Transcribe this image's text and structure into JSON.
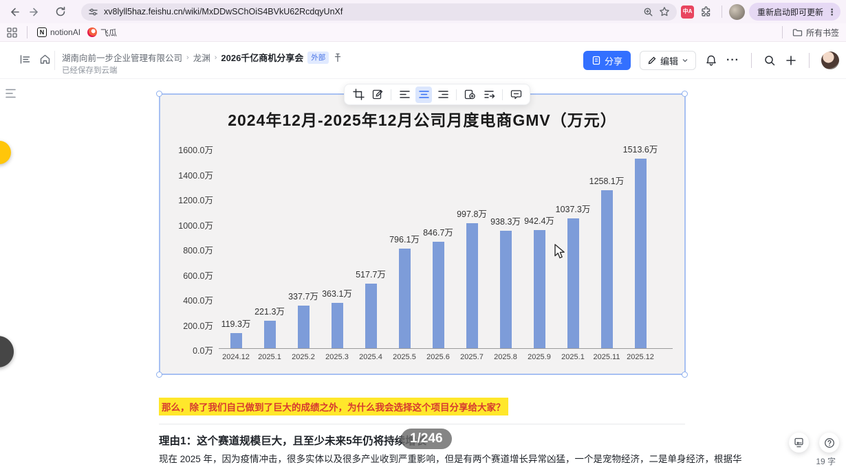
{
  "browser": {
    "url": "xv8lyll5haz.feishu.cn/wiki/MxDDwSChOiS4BVkU62RcdqyUnXf",
    "update_button_label": "重新启动即可更新",
    "bookmarks": [
      {
        "label": "notionAI"
      },
      {
        "label": "飞瓜"
      }
    ],
    "all_bookmarks_label": "所有书签"
  },
  "header": {
    "breadcrumb": [
      "湖南向前一步企业管理有限公司",
      "龙渊",
      "2026千亿商机分享会"
    ],
    "external_badge": "外部",
    "save_status": "已经保存到云端",
    "share_label": "分享",
    "edit_label": "编辑"
  },
  "chart_data": {
    "type": "bar",
    "title": "2024年12月-2025年12月公司月度电商GMV（万元）",
    "categories": [
      "2024.12",
      "2025.1",
      "2025.2",
      "2025.3",
      "2025.4",
      "2025.5",
      "2025.6",
      "2025.7",
      "2025.8",
      "2025.9",
      "2025.1",
      "2025.11",
      "2025.12"
    ],
    "values": [
      119.3,
      221.3,
      337.7,
      363.1,
      517.7,
      796.1,
      846.7,
      997.8,
      938.3,
      942.4,
      1037.3,
      1258.1,
      1513.6
    ],
    "value_suffix": "万",
    "y_ticks": [
      "0.0万",
      "200.0万",
      "400.0万",
      "600.0万",
      "800.0万",
      "1000.0万",
      "1200.0万",
      "1400.0万",
      "1600.0万"
    ],
    "ylim": [
      0,
      1600
    ],
    "grid": false,
    "legend_position": "none",
    "bar_color": "#7d9cd9"
  },
  "content": {
    "highlight_text": "那么，除了我们自己做到了巨大的成绩之外，为什么我会选择这个项目分享给大家？",
    "heading": "理由1：这个赛道规模巨大，且至少未来5年仍将持续增长",
    "body": "现在 2025 年，因为疫情冲击，很多实体以及很多产业收到严重影响，但是有两个赛道增长异常凶猛，一个是宠物经济，二是单身经济，根据华",
    "page_indicator": "1/246",
    "word_count": "19 字"
  }
}
